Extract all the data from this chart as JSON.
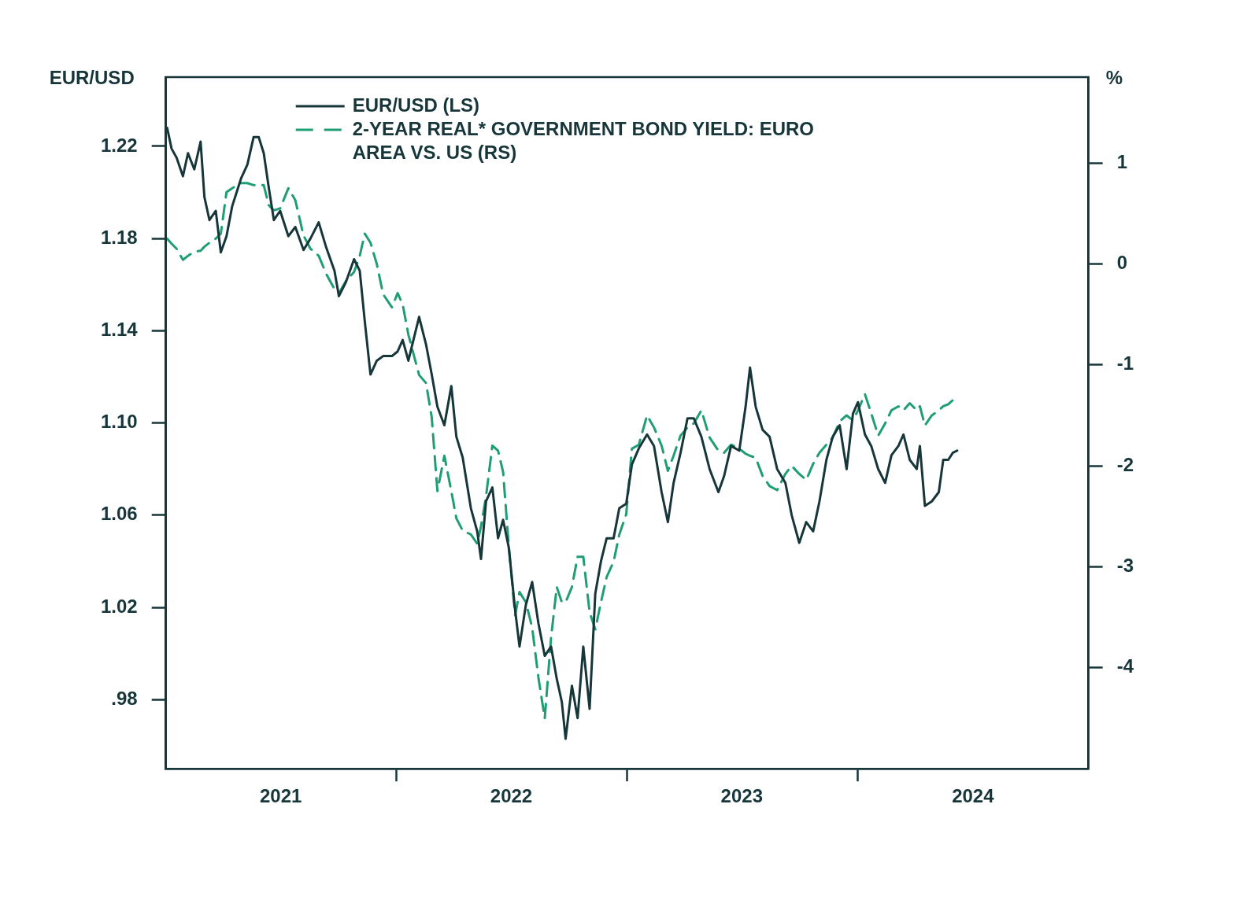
{
  "chart_data": {
    "type": "line",
    "ylabel": "EUR/USD",
    "y2label": "%",
    "legend": "top left",
    "grid": false,
    "marker": "none",
    "x": [
      "2021-01-03",
      "2021-01-10",
      "2021-01-18",
      "2021-01-28",
      "2021-02-05",
      "2021-02-15",
      "2021-02-25",
      "2021-03-03",
      "2021-03-11",
      "2021-03-21",
      "2021-03-29",
      "2021-04-07",
      "2021-04-16",
      "2021-04-30",
      "2021-05-10",
      "2021-05-20",
      "2021-05-28",
      "2021-06-05",
      "2021-06-13",
      "2021-06-21",
      "2021-07-01",
      "2021-07-14",
      "2021-07-25",
      "2021-08-07",
      "2021-08-18",
      "2021-08-31",
      "2021-09-12",
      "2021-09-25",
      "2021-10-02",
      "2021-10-13",
      "2021-10-26",
      "2021-11-04",
      "2021-11-12",
      "2021-11-21",
      "2021-12-01",
      "2021-12-11",
      "2021-12-25",
      "2022-01-03",
      "2022-01-11",
      "2022-01-20",
      "2022-02-06",
      "2022-02-17",
      "2022-02-26",
      "2022-03-07",
      "2022-03-18",
      "2022-03-29",
      "2022-04-06",
      "2022-04-16",
      "2022-04-29",
      "2022-05-09",
      "2022-05-15",
      "2022-05-23",
      "2022-06-02",
      "2022-06-11",
      "2022-06-19",
      "2022-06-28",
      "2022-07-08",
      "2022-07-15",
      "2022-07-25",
      "2022-08-04",
      "2022-08-14",
      "2022-08-24",
      "2022-09-03",
      "2022-09-12",
      "2022-09-20",
      "2022-09-26",
      "2022-10-06",
      "2022-10-15",
      "2022-10-24",
      "2022-11-03",
      "2022-11-12",
      "2022-11-21",
      "2022-11-30",
      "2022-12-11",
      "2022-12-20",
      "2022-12-31",
      "2023-01-09",
      "2023-01-20",
      "2023-02-02",
      "2023-02-13",
      "2023-02-25",
      "2023-03-07",
      "2023-03-16",
      "2023-03-27",
      "2023-04-07",
      "2023-04-17",
      "2023-04-29",
      "2023-05-12",
      "2023-05-26",
      "2023-06-04",
      "2023-06-15",
      "2023-06-28",
      "2023-07-08",
      "2023-07-15",
      "2023-07-24",
      "2023-08-04",
      "2023-08-15",
      "2023-08-27",
      "2023-09-09",
      "2023-09-19",
      "2023-10-01",
      "2023-10-12",
      "2023-10-23",
      "2023-11-02",
      "2023-11-13",
      "2023-11-23",
      "2023-12-04",
      "2023-12-15",
      "2023-12-25",
      "2024-01-02",
      "2024-01-13",
      "2024-01-23",
      "2024-02-03",
      "2024-02-14",
      "2024-02-24",
      "2024-03-06",
      "2024-03-14",
      "2024-03-24",
      "2024-04-04",
      "2024-04-09",
      "2024-04-17",
      "2024-04-28",
      "2024-05-09",
      "2024-05-16",
      "2024-05-24",
      "2024-05-31",
      "2024-06-07"
    ],
    "xlim": [
      "2021-01-01",
      "2025-01-01"
    ],
    "xticks": [
      {
        "value": "2021-07-02",
        "label": "2021"
      },
      {
        "value": "2022-01-01",
        "label": null
      },
      {
        "value": "2022-07-02",
        "label": "2022"
      },
      {
        "value": "2023-01-01",
        "label": null
      },
      {
        "value": "2023-07-02",
        "label": "2023"
      },
      {
        "value": "2024-01-01",
        "label": null
      },
      {
        "value": "2024-07-02",
        "label": "2024"
      }
    ],
    "ylim": [
      0.95,
      1.25
    ],
    "yticks": [
      {
        "value": 0.98,
        "label": ".98"
      },
      1.02,
      1.06,
      {
        "value": 1.1,
        "label": "1.10"
      },
      1.14,
      1.18,
      1.22
    ],
    "y2lim": [
      -5,
      1.85
    ],
    "y2ticks": [
      -4,
      -3,
      -2,
      -1,
      0,
      1
    ],
    "series": [
      {
        "name": "EUR/USD (LS)",
        "color": "#17363a",
        "line_style": "solid",
        "values": [
          1.228,
          1.219,
          1.215,
          1.207,
          1.217,
          1.21,
          1.222,
          1.198,
          1.188,
          1.192,
          1.174,
          1.181,
          1.194,
          1.206,
          1.212,
          1.224,
          1.224,
          1.217,
          1.202,
          1.188,
          1.192,
          1.181,
          1.185,
          1.175,
          1.18,
          1.187,
          1.176,
          1.166,
          1.155,
          1.161,
          1.171,
          1.166,
          1.144,
          1.121,
          1.127,
          1.129,
          1.129,
          1.131,
          1.136,
          1.127,
          1.146,
          1.134,
          1.121,
          1.107,
          1.099,
          1.116,
          1.094,
          1.085,
          1.063,
          1.053,
          1.041,
          1.066,
          1.072,
          1.05,
          1.058,
          1.046,
          1.019,
          1.003,
          1.021,
          1.031,
          1.013,
          0.999,
          1.003,
          0.989,
          0.979,
          0.963,
          0.986,
          0.972,
          1.003,
          0.976,
          1.026,
          1.04,
          1.05,
          1.05,
          1.063,
          1.065,
          1.082,
          1.089,
          1.095,
          1.09,
          1.07,
          1.057,
          1.074,
          1.087,
          1.102,
          1.102,
          1.094,
          1.08,
          1.07,
          1.077,
          1.09,
          1.088,
          1.107,
          1.124,
          1.107,
          1.097,
          1.094,
          1.08,
          1.074,
          1.06,
          1.048,
          1.057,
          1.053,
          1.066,
          1.084,
          1.094,
          1.099,
          1.08,
          1.104,
          1.109,
          1.095,
          1.09,
          1.08,
          1.074,
          1.086,
          1.09,
          1.095,
          1.084,
          1.08,
          1.09,
          1.064,
          1.066,
          1.07,
          1.084,
          1.084,
          1.087,
          1.088
        ]
      },
      {
        "name": "2-YEAR REAL* GOVERNMENT BOND YIELD: EURO AREA VS. US (RS)",
        "color": "#1f9e74",
        "line_style": "dashed",
        "axis": "y2",
        "values": [
          0.25,
          0.2,
          0.15,
          0.04,
          0.08,
          0.12,
          0.13,
          0.17,
          0.21,
          0.25,
          0.3,
          0.71,
          0.75,
          0.8,
          0.8,
          0.78,
          0.78,
          0.78,
          0.58,
          0.53,
          0.55,
          0.75,
          0.63,
          0.28,
          0.15,
          0.08,
          -0.1,
          -0.25,
          -0.29,
          -0.17,
          -0.08,
          0.08,
          0.3,
          0.21,
          0.0,
          -0.3,
          -0.43,
          -0.29,
          -0.4,
          -0.7,
          -1.1,
          -1.18,
          -1.52,
          -2.25,
          -1.9,
          -2.25,
          -2.52,
          -2.64,
          -2.68,
          -2.77,
          -2.6,
          -2.3,
          -1.8,
          -1.85,
          -2.06,
          -2.79,
          -3.48,
          -3.25,
          -3.35,
          -3.6,
          -4.1,
          -4.5,
          -3.7,
          -3.2,
          -3.35,
          -3.35,
          -3.2,
          -2.9,
          -2.9,
          -3.45,
          -3.62,
          -3.35,
          -3.1,
          -2.95,
          -2.68,
          -2.48,
          -1.83,
          -1.79,
          -1.5,
          -1.62,
          -1.8,
          -2.05,
          -1.9,
          -1.7,
          -1.62,
          -1.58,
          -1.45,
          -1.72,
          -1.85,
          -1.87,
          -1.79,
          -1.83,
          -1.88,
          -1.9,
          -1.92,
          -2.1,
          -2.2,
          -2.24,
          -2.08,
          -2.0,
          -2.08,
          -2.14,
          -1.98,
          -1.87,
          -1.79,
          -1.72,
          -1.56,
          -1.5,
          -1.55,
          -1.45,
          -1.29,
          -1.48,
          -1.7,
          -1.58,
          -1.45,
          -1.41,
          -1.45,
          -1.38,
          -1.45,
          -1.41,
          -1.6,
          -1.5,
          -1.45,
          -1.41,
          -1.39,
          -1.35,
          -1.32
        ]
      }
    ]
  }
}
